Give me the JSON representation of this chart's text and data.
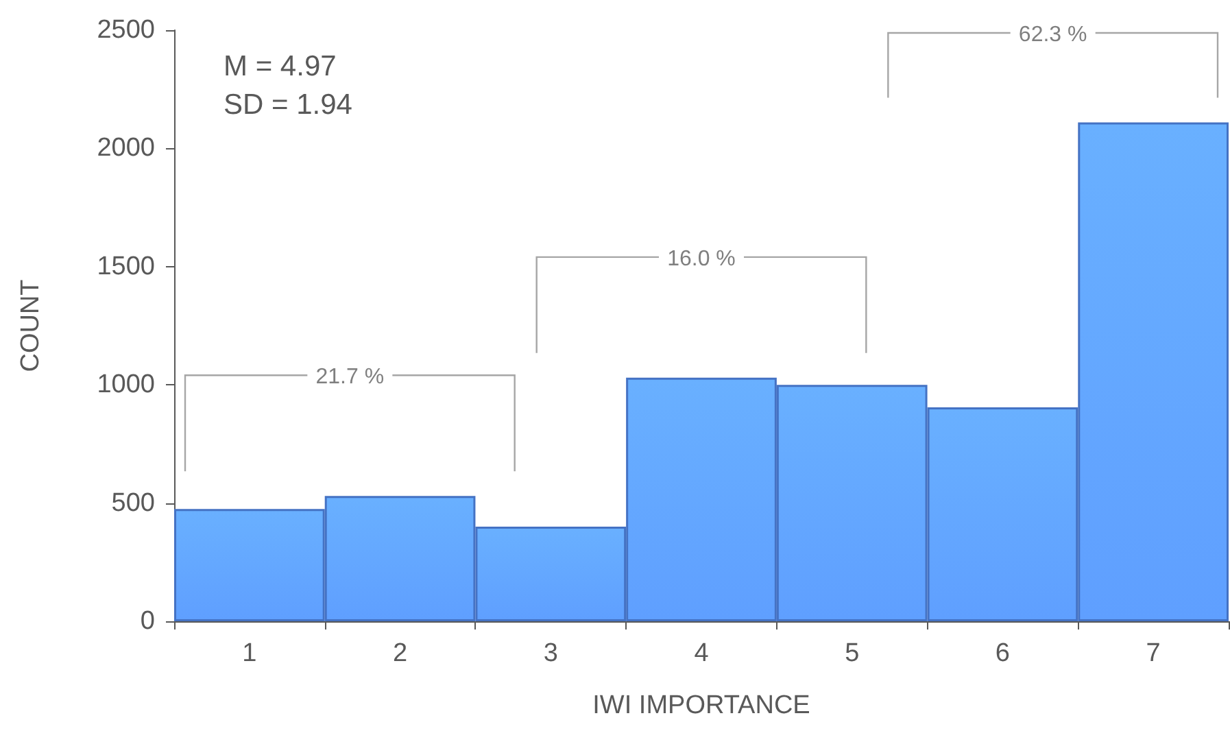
{
  "chart_data": {
    "type": "bar",
    "xlabel": "IWI IMPORTANCE",
    "ylabel": "COUNT",
    "categories": [
      "1",
      "2",
      "3",
      "4",
      "5",
      "6",
      "7"
    ],
    "values": [
      475,
      530,
      400,
      1030,
      1000,
      905,
      2110
    ],
    "color": "#4472c4",
    "ylim": [
      0,
      2500
    ],
    "yticks": [
      0,
      500,
      1000,
      1500,
      2000,
      2500
    ],
    "grid": false,
    "annotations": [
      "M = 4.97",
      "SD = 1.94",
      "21.7 %",
      "16.0 %",
      "62.3 %"
    ]
  }
}
